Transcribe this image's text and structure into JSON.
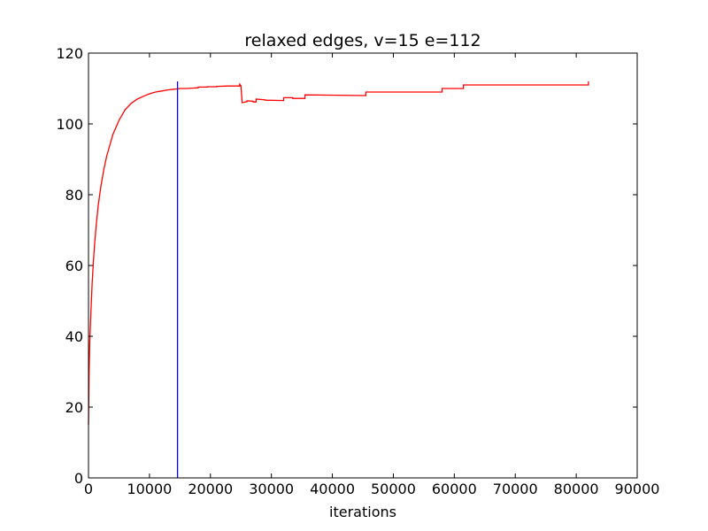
{
  "chart_data": {
    "type": "line",
    "title": "relaxed edges, v=15 e=112",
    "xlabel": "iterations",
    "ylabel": "",
    "xlim": [
      0,
      90000
    ],
    "ylim": [
      0,
      120
    ],
    "xticks": [
      0,
      10000,
      20000,
      30000,
      40000,
      50000,
      60000,
      70000,
      80000,
      90000
    ],
    "yticks": [
      0,
      20,
      40,
      60,
      80,
      100,
      120
    ],
    "xtick_labels": [
      "0",
      "10000",
      "20000",
      "30000",
      "40000",
      "50000",
      "60000",
      "70000",
      "80000",
      "90000"
    ],
    "ytick_labels": [
      "0",
      "20",
      "40",
      "60",
      "80",
      "100",
      "120"
    ],
    "grid": false,
    "series": [
      {
        "color": "#ff0000",
        "x": [
          0,
          100,
          200,
          400,
          600,
          800,
          1000,
          1300,
          1600,
          2000,
          2500,
          3000,
          3500,
          4000,
          5000,
          6000,
          7000,
          8000,
          9000,
          10000,
          11000,
          12000,
          13000,
          14000,
          14600,
          15000,
          16000,
          17000,
          18000,
          18000,
          19500,
          19500,
          21000,
          21000,
          23000,
          24800,
          24800,
          25000,
          25200,
          25200,
          26000,
          26000,
          27000,
          27000,
          27500,
          27500,
          29000,
          29000,
          32000,
          32000,
          33500,
          33500,
          35500,
          35500,
          45500,
          45500,
          58000,
          58000,
          61500,
          61500,
          82000,
          82000
        ],
        "y": [
          15,
          30,
          38,
          47,
          55,
          61,
          66,
          72,
          77,
          82,
          87,
          91,
          94,
          97,
          101,
          104,
          105.8,
          107,
          107.8,
          108.5,
          109,
          109.3,
          109.6,
          109.8,
          109.9,
          110,
          110,
          110.1,
          110.2,
          110.4,
          110.4,
          110.5,
          110.5,
          110.6,
          110.7,
          110.7,
          111.2,
          110.8,
          106,
          106,
          106.3,
          106.5,
          106.4,
          106.2,
          106.2,
          107,
          106.8,
          106.7,
          106.6,
          107.4,
          107.4,
          107.2,
          107.2,
          108.2,
          108,
          109,
          109,
          110,
          110,
          111,
          111,
          112
        ]
      },
      {
        "color": "#0000ff",
        "x": [
          14600,
          14600
        ],
        "y": [
          0,
          112
        ]
      }
    ]
  }
}
